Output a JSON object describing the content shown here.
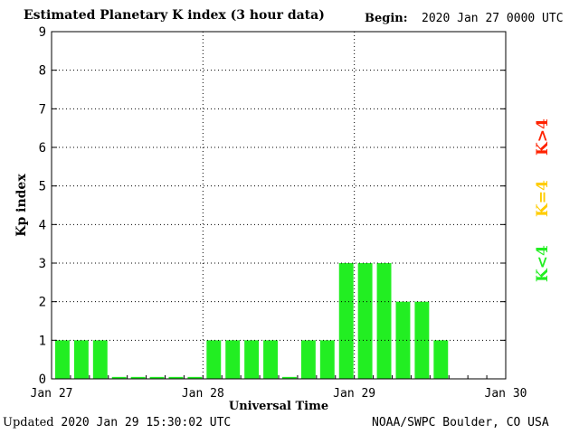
{
  "header": {
    "title": "Estimated Planetary K index (3 hour data)",
    "begin_label": "Begin:",
    "begin_value": "2020 Jan 27 0000 UTC"
  },
  "footer": {
    "updated_label": "Updated",
    "updated_value": "2020 Jan 29 15:30:02 UTC",
    "credit": "NOAA/SWPC Boulder, CO USA"
  },
  "legend": {
    "low": "K<4",
    "mid": "K=4",
    "high": "K>4",
    "colors": {
      "low": "#22ee22",
      "mid": "#ffcc00",
      "high": "#ff2200"
    }
  },
  "chart_data": {
    "type": "bar",
    "title": "Estimated Planetary K index (3 hour data)",
    "xlabel": "Universal Time",
    "ylabel": "Kp index",
    "ylim": [
      0,
      9
    ],
    "yticks": [
      "0",
      "1",
      "2",
      "3",
      "4",
      "5",
      "6",
      "7",
      "8",
      "9"
    ],
    "xticks": [
      "Jan 27",
      "Jan 28",
      "Jan 29",
      "Jan 30"
    ],
    "grid": true,
    "bar_color": "#22ee22",
    "values": [
      1,
      1,
      1,
      0.05,
      0.05,
      0.05,
      0.05,
      0.05,
      1,
      1,
      1,
      1,
      0.05,
      1,
      1,
      3,
      3,
      3,
      2,
      2,
      1
    ]
  }
}
